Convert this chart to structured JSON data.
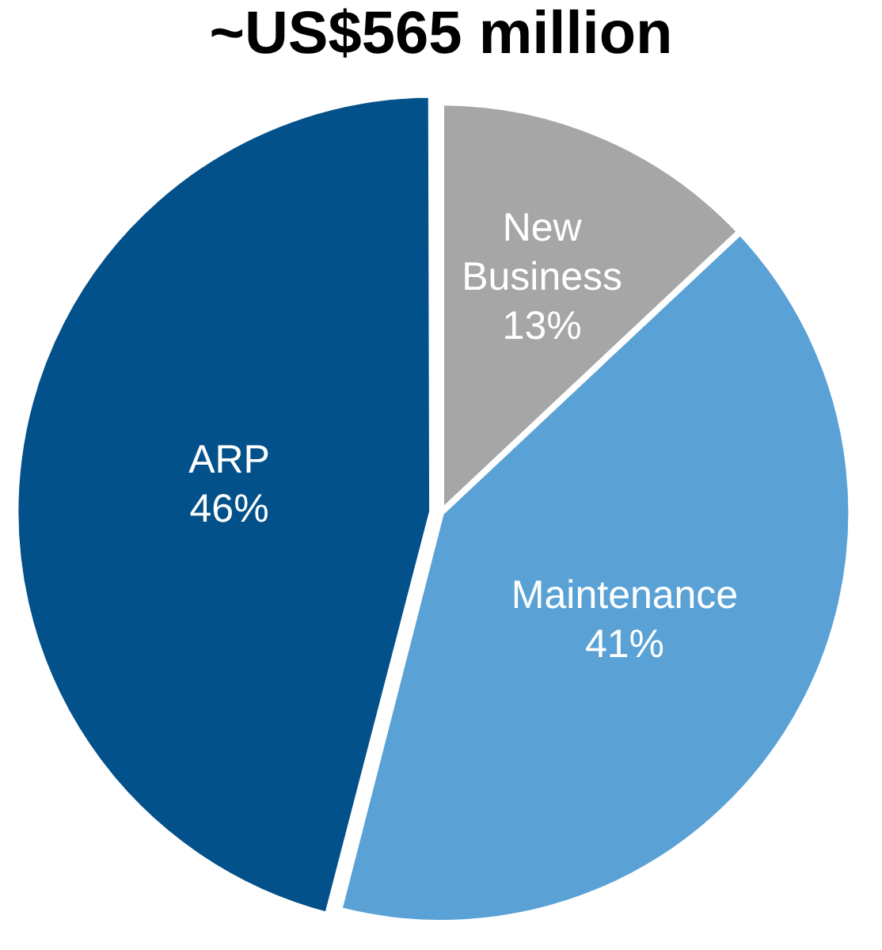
{
  "chart_data": {
    "type": "pie",
    "title": "~US$565 million",
    "categories": [
      "New Business",
      "Maintenance",
      "ARP"
    ],
    "values": [
      13,
      41,
      46
    ],
    "colors": [
      "#a6a6a6",
      "#5aa2d5",
      "#03518a"
    ],
    "value_labels": [
      "13%",
      "41%",
      "46%"
    ],
    "legend": false
  }
}
